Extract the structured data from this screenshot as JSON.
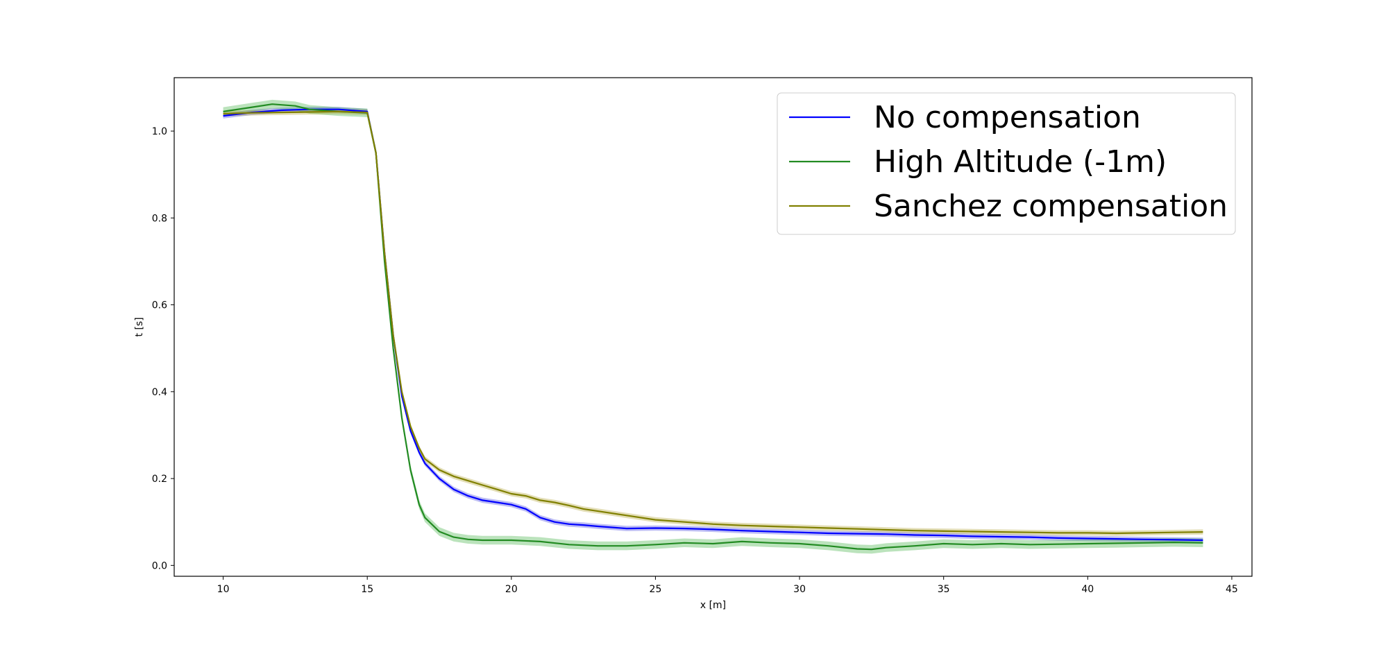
{
  "chart_data": {
    "type": "line",
    "title": "",
    "xlabel": "x [m]",
    "ylabel": "t [s]",
    "xlim": [
      8.3,
      45.7
    ],
    "ylim": [
      -0.025,
      1.123
    ],
    "xticks": [
      10,
      15,
      20,
      25,
      30,
      35,
      40,
      45
    ],
    "yticks": [
      0.0,
      0.2,
      0.4,
      0.6,
      0.8,
      1.0
    ],
    "ytick_labels": [
      "0.0",
      "0.2",
      "0.4",
      "0.6",
      "0.8",
      "1.0"
    ],
    "grid": false,
    "legend_position": "top-right",
    "series": [
      {
        "name": "No compensation",
        "color": "#0000ff",
        "band_color": "#4040e0",
        "x": [
          10,
          11,
          12,
          13,
          14,
          15,
          15.3,
          15.6,
          15.9,
          16.2,
          16.5,
          16.8,
          17,
          17.5,
          18,
          18.5,
          19,
          19.5,
          20,
          20.5,
          21,
          21.5,
          22,
          22.5,
          23,
          24,
          25,
          26,
          27,
          28,
          29,
          30,
          31,
          32,
          33,
          34,
          35,
          36,
          37,
          38,
          39,
          40,
          41,
          42,
          43,
          44
        ],
        "y": [
          1.035,
          1.043,
          1.048,
          1.05,
          1.05,
          1.045,
          0.95,
          0.72,
          0.53,
          0.39,
          0.31,
          0.26,
          0.235,
          0.2,
          0.175,
          0.16,
          0.15,
          0.145,
          0.14,
          0.13,
          0.11,
          0.1,
          0.095,
          0.093,
          0.09,
          0.085,
          0.086,
          0.085,
          0.083,
          0.08,
          0.078,
          0.076,
          0.074,
          0.073,
          0.072,
          0.07,
          0.069,
          0.067,
          0.066,
          0.065,
          0.063,
          0.062,
          0.061,
          0.06,
          0.059,
          0.058
        ],
        "spread": 0.006
      },
      {
        "name": "High Altitude (-1m)",
        "color": "#228b22",
        "band_color": "#3cb040",
        "x": [
          10,
          11,
          11.7,
          12.5,
          13,
          14,
          15,
          15.3,
          15.6,
          15.9,
          16.2,
          16.5,
          16.8,
          17,
          17.5,
          18,
          18.5,
          19,
          20,
          21,
          22,
          23,
          24,
          25,
          26,
          27,
          28,
          29,
          30,
          31,
          32,
          32.5,
          33,
          34,
          35,
          36,
          37,
          38,
          39,
          40,
          41,
          42,
          43,
          44
        ],
        "y": [
          1.045,
          1.055,
          1.062,
          1.058,
          1.05,
          1.045,
          1.042,
          0.95,
          0.7,
          0.5,
          0.34,
          0.22,
          0.14,
          0.11,
          0.078,
          0.065,
          0.06,
          0.058,
          0.058,
          0.055,
          0.048,
          0.045,
          0.045,
          0.048,
          0.052,
          0.05,
          0.055,
          0.052,
          0.05,
          0.045,
          0.038,
          0.037,
          0.041,
          0.045,
          0.05,
          0.048,
          0.05,
          0.048,
          0.049,
          0.05,
          0.051,
          0.052,
          0.053,
          0.052
        ],
        "spread": 0.01
      },
      {
        "name": "Sanchez compensation",
        "color": "#808000",
        "band_color": "#b0a030",
        "x": [
          10,
          11,
          12,
          13,
          14,
          15,
          15.3,
          15.6,
          15.9,
          16.2,
          16.5,
          16.8,
          17,
          17.5,
          18,
          18.5,
          19,
          19.5,
          20,
          20.5,
          21,
          21.5,
          22,
          22.5,
          23,
          24,
          25,
          26,
          27,
          28,
          29,
          30,
          31,
          32,
          33,
          34,
          35,
          36,
          37,
          38,
          39,
          40,
          41,
          42,
          43,
          44
        ],
        "y": [
          1.04,
          1.042,
          1.043,
          1.044,
          1.045,
          1.043,
          0.95,
          0.72,
          0.53,
          0.4,
          0.32,
          0.27,
          0.245,
          0.22,
          0.205,
          0.195,
          0.185,
          0.175,
          0.165,
          0.16,
          0.15,
          0.145,
          0.138,
          0.13,
          0.125,
          0.115,
          0.105,
          0.1,
          0.095,
          0.092,
          0.09,
          0.088,
          0.086,
          0.084,
          0.082,
          0.08,
          0.079,
          0.078,
          0.077,
          0.076,
          0.075,
          0.075,
          0.074,
          0.075,
          0.076,
          0.077
        ],
        "spread": 0.006
      }
    ]
  }
}
